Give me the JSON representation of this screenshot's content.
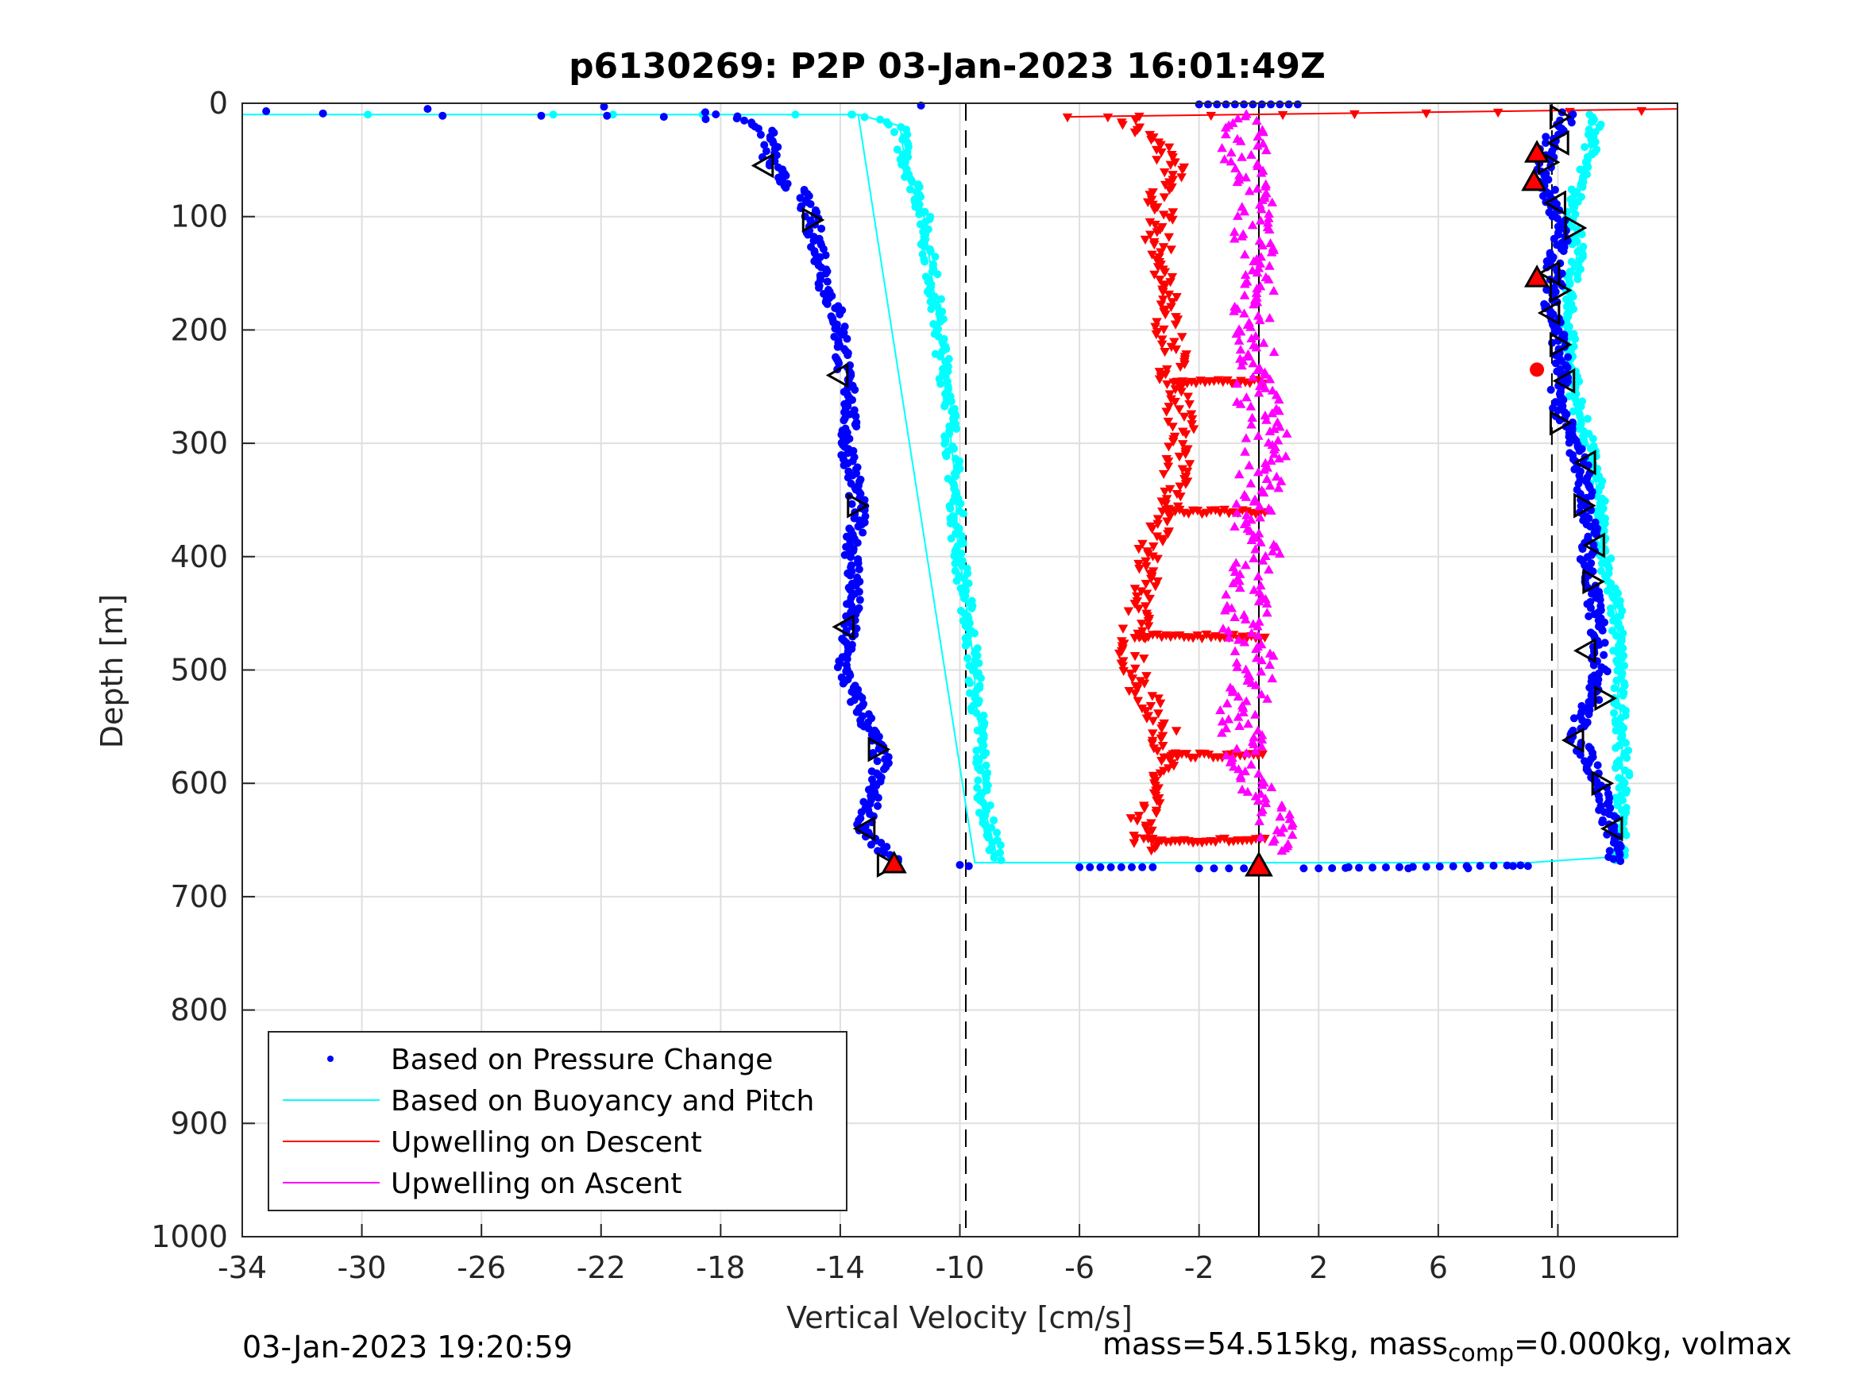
{
  "chart_data": {
    "type": "scatter",
    "title": "p6130269: P2P 03-Jan-2023 16:01:49Z",
    "xlabel": "Vertical Velocity [cm/s]",
    "ylabel": "Depth [m]",
    "xlim": [
      -34,
      14
    ],
    "ylim": [
      0,
      1000
    ],
    "y_reversed": true,
    "xticks": [
      -34,
      -30,
      -26,
      -22,
      -18,
      -14,
      -10,
      -6,
      -2,
      2,
      6,
      10
    ],
    "yticks": [
      0,
      100,
      200,
      300,
      400,
      500,
      600,
      700,
      800,
      900,
      1000
    ],
    "grid": true,
    "legend_position": "bottom-left",
    "vertical_reference_lines": [
      {
        "x": -9.8,
        "style": "dashed"
      },
      {
        "x": 0,
        "style": "solid"
      },
      {
        "x": 9.8,
        "style": "dashed"
      }
    ],
    "series": [
      {
        "name": "Based on Pressure Change",
        "color": "#0000ff",
        "marker": "dot",
        "depth": [
          8,
          12,
          18,
          25,
          35,
          50,
          65,
          80,
          100,
          120,
          140,
          160,
          180,
          200,
          220,
          240,
          260,
          280,
          300,
          320,
          340,
          360,
          380,
          400,
          420,
          440,
          460,
          480,
          500,
          520,
          540,
          560,
          580,
          600,
          620,
          640,
          660,
          670
        ],
        "descent": [
          -18.5,
          -17.5,
          -16.8,
          -16.5,
          -16.3,
          -16.4,
          -16.0,
          -15.3,
          -15.0,
          -14.8,
          -14.6,
          -14.5,
          -14.2,
          -14.0,
          -13.9,
          -13.9,
          -13.6,
          -13.7,
          -13.8,
          -13.6,
          -13.5,
          -13.4,
          -13.5,
          -13.6,
          -13.5,
          -13.6,
          -13.7,
          -13.8,
          -13.9,
          -13.6,
          -13.2,
          -12.9,
          -12.6,
          -12.9,
          -13.0,
          -13.2,
          -12.6,
          -12.2
        ],
        "ascent": [
          10.4,
          10.5,
          10.2,
          9.9,
          9.7,
          9.6,
          9.5,
          9.7,
          10.0,
          10.1,
          9.9,
          9.9,
          9.8,
          10.0,
          10.1,
          10.1,
          10.0,
          10.2,
          10.5,
          10.8,
          10.9,
          11.0,
          11.1,
          11.0,
          11.0,
          11.2,
          11.3,
          11.4,
          11.4,
          11.3,
          10.8,
          10.6,
          11.1,
          11.4,
          11.6,
          11.8,
          11.9,
          11.9
        ],
        "surface_x": [
          -33.2,
          -31.3,
          -27.8,
          -27.3,
          -24.0,
          -21.9,
          -21.8,
          -19.9,
          -18.5,
          -11.3,
          -10.0,
          -9.7,
          1.5,
          3.0,
          5.0,
          7.0,
          8.5,
          9.0
        ],
        "surface_depth": [
          7,
          9,
          5,
          11,
          11,
          3,
          11,
          12,
          14,
          2,
          672,
          673,
          675,
          674,
          675,
          675,
          673,
          673
        ]
      },
      {
        "name": "Based on Buoyancy and Pitch",
        "color": "#00ffff",
        "marker": "line",
        "depth": [
          10,
          20,
          40,
          60,
          80,
          100,
          120,
          140,
          160,
          180,
          200,
          220,
          240,
          260,
          280,
          300,
          320,
          340,
          360,
          380,
          400,
          420,
          440,
          460,
          480,
          500,
          520,
          540,
          560,
          580,
          600,
          620,
          640,
          660,
          670
        ],
        "descent": [
          -13.4,
          -12.0,
          -11.9,
          -11.7,
          -11.4,
          -11.2,
          -11.1,
          -11.0,
          -10.9,
          -10.8,
          -10.7,
          -10.6,
          -10.5,
          -10.3,
          -10.3,
          -10.3,
          -10.2,
          -10.2,
          -10.1,
          -10.1,
          -10.0,
          -9.9,
          -9.8,
          -9.7,
          -9.6,
          -9.5,
          -9.5,
          -9.4,
          -9.3,
          -9.3,
          -9.2,
          -9.2,
          -9.0,
          -8.8,
          -8.8
        ],
        "ascent": [
          11.0,
          11.3,
          11.1,
          10.8,
          10.6,
          10.5,
          10.7,
          10.6,
          10.4,
          10.3,
          10.4,
          10.4,
          10.5,
          10.6,
          10.8,
          11.0,
          11.2,
          11.3,
          11.4,
          11.4,
          11.6,
          11.7,
          11.9,
          12.0,
          12.0,
          12.1,
          12.0,
          12.1,
          12.2,
          12.1,
          12.2,
          12.1,
          12.1,
          12.1,
          12.0
        ],
        "surface_line": {
          "x": [
            -34,
            -13.4,
            -9.5,
            9.0,
            11.8
          ],
          "depth": [
            10,
            10,
            670,
            670,
            665
          ]
        }
      },
      {
        "name": "Upwelling on Descent",
        "color": "#ff0000",
        "marker": "triangle-down",
        "depth": [
          12,
          25,
          40,
          60,
          80,
          100,
          120,
          140,
          160,
          180,
          200,
          220,
          240,
          260,
          280,
          300,
          320,
          340,
          360,
          380,
          400,
          420,
          440,
          460,
          480,
          500,
          520,
          540,
          560,
          580,
          600,
          620,
          640,
          660
        ],
        "values": [
          -4.6,
          -4.0,
          -3.2,
          -2.8,
          -3.5,
          -3.2,
          -3.4,
          -3.2,
          -3.3,
          -3.0,
          -3.1,
          -2.8,
          -2.9,
          -2.7,
          -2.6,
          -2.6,
          -2.7,
          -2.9,
          -3.1,
          -3.5,
          -3.8,
          -3.6,
          -3.9,
          -4.1,
          -4.2,
          -4.3,
          -3.9,
          -3.4,
          -3.1,
          -3.2,
          -3.5,
          -3.8,
          -4.0,
          -3.7
        ],
        "annotations": [
          "horizontal bands at ~245, ~360, ~470, ~575 and ~650 m"
        ]
      },
      {
        "name": "Upwelling on Ascent",
        "color": "#ff00ff",
        "marker": "triangle-up",
        "depth": [
          10,
          25,
          40,
          60,
          80,
          100,
          120,
          140,
          160,
          180,
          200,
          220,
          240,
          260,
          280,
          300,
          320,
          340,
          360,
          380,
          400,
          420,
          440,
          460,
          480,
          500,
          520,
          540,
          560,
          580,
          600,
          620,
          640,
          660
        ],
        "values": [
          -0.2,
          -0.4,
          -0.5,
          -0.4,
          -0.3,
          -0.2,
          -0.1,
          0.0,
          -0.1,
          -0.3,
          -0.1,
          0.0,
          -0.2,
          -0.1,
          0.2,
          0.3,
          0.1,
          0.0,
          -0.1,
          -0.2,
          0.0,
          -0.3,
          -0.4,
          -0.5,
          -0.3,
          -0.2,
          -0.4,
          -0.6,
          -0.5,
          -0.3,
          -0.2,
          0.2,
          0.5,
          0.6
        ]
      }
    ],
    "open_triangles": {
      "descent": [
        [
          -16.5,
          55
        ],
        [
          -15.0,
          103
        ],
        [
          -14.0,
          240
        ],
        [
          -13.5,
          355
        ],
        [
          -13.8,
          462
        ],
        [
          -12.8,
          570
        ],
        [
          -13.1,
          640
        ],
        [
          -12.5,
          672
        ]
      ],
      "ascent": [
        [
          10.0,
          12
        ],
        [
          10.1,
          35
        ],
        [
          9.6,
          52
        ],
        [
          10.0,
          88
        ],
        [
          10.5,
          110
        ],
        [
          9.8,
          150
        ],
        [
          10.0,
          165
        ],
        [
          9.8,
          185
        ],
        [
          10.0,
          213
        ],
        [
          10.3,
          245
        ],
        [
          10.0,
          282
        ],
        [
          11.0,
          317
        ],
        [
          10.8,
          355
        ],
        [
          11.3,
          390
        ],
        [
          11.1,
          422
        ],
        [
          11.0,
          483
        ],
        [
          11.5,
          525
        ],
        [
          10.6,
          562
        ],
        [
          11.4,
          600
        ],
        [
          11.9,
          640
        ]
      ]
    },
    "red_markers": [
      [
        9.3,
        45
      ],
      [
        9.2,
        70
      ],
      [
        9.3,
        155
      ],
      [
        9.3,
        235
      ],
      [
        -12.2,
        672
      ]
    ],
    "surface_red_line": {
      "x": [
        -6.4,
        14
      ],
      "depth": [
        12,
        5
      ]
    },
    "big_triangle": {
      "x": 0,
      "depth": 674
    }
  },
  "footer": {
    "date": "03-Jan-2023 19:20:59",
    "mass_prefix": "mass=54.515kg, mass",
    "mass_sub": "comp",
    "mass_suffix": "=0.000kg, volmax"
  }
}
